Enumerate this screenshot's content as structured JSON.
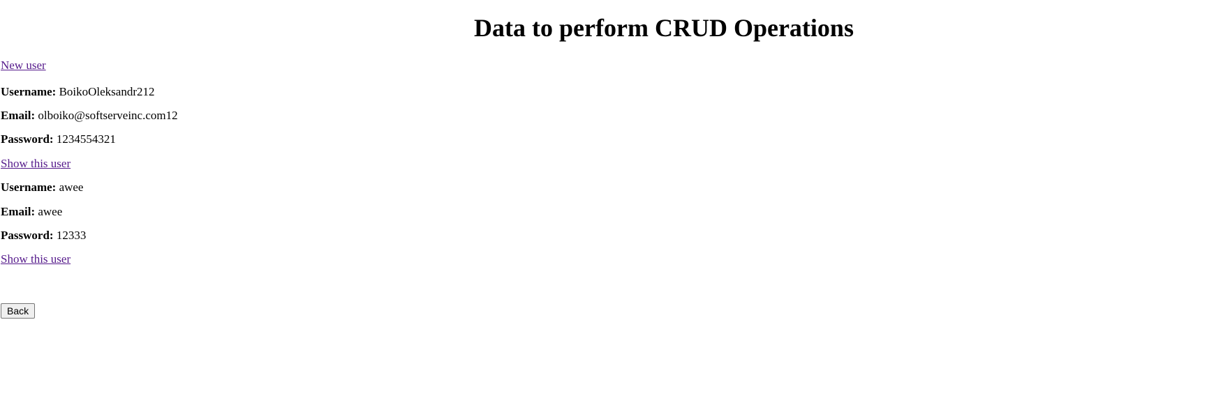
{
  "page": {
    "title": "Data to perform CRUD Operations",
    "new_user_link": "New user",
    "back_button": "Back"
  },
  "labels": {
    "username": "Username:",
    "email": "Email:",
    "password": "Password:"
  },
  "users": [
    {
      "username": "BoikoOleksandr212",
      "email": "olboiko@softserveinc.com12",
      "password": "1234554321",
      "show_link": "Show this user"
    },
    {
      "username": "awee",
      "email": "awee",
      "password": "12333",
      "show_link": "Show this user"
    }
  ],
  "colors": {
    "link_visited": "#551a8b",
    "text": "#000000",
    "background": "#ffffff"
  }
}
